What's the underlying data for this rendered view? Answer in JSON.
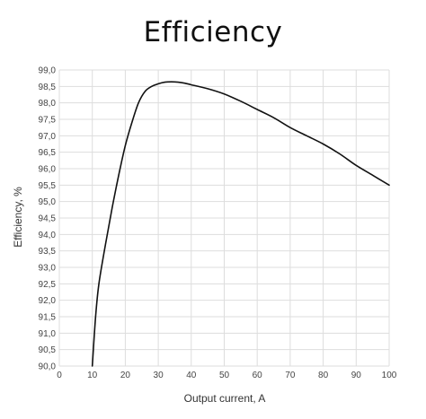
{
  "chart_data": {
    "type": "line",
    "title": "Efficiency",
    "xlabel": "Output current, A",
    "ylabel": "Efficiency, %",
    "xlim": [
      0,
      100
    ],
    "ylim": [
      90.0,
      99.0
    ],
    "x_ticks": [
      "0",
      "10",
      "20",
      "30",
      "40",
      "50",
      "60",
      "70",
      "80",
      "90",
      "100"
    ],
    "y_ticks": [
      "90,0",
      "90,5",
      "91,0",
      "91,5",
      "92,0",
      "92,5",
      "93,0",
      "93,5",
      "94,0",
      "94,5",
      "95,0",
      "95,5",
      "96,0",
      "96,5",
      "97,0",
      "97,5",
      "98,0",
      "98,5",
      "99,0"
    ],
    "grid": true,
    "line_color": "#111111",
    "grid_color": "#dddddd",
    "series": [
      {
        "x": [
          10,
          11,
          12,
          14,
          16,
          18,
          20,
          22,
          24,
          26,
          28,
          30,
          32,
          34,
          36,
          38,
          40,
          45,
          50,
          55,
          60,
          65,
          70,
          75,
          80,
          85,
          90,
          95,
          100
        ],
        "y": [
          90.0,
          91.5,
          92.5,
          93.7,
          94.8,
          95.8,
          96.7,
          97.4,
          98.0,
          98.35,
          98.5,
          98.58,
          98.63,
          98.64,
          98.63,
          98.6,
          98.55,
          98.43,
          98.27,
          98.05,
          97.8,
          97.55,
          97.25,
          97.0,
          96.75,
          96.45,
          96.1,
          95.8,
          95.5
        ]
      }
    ]
  }
}
